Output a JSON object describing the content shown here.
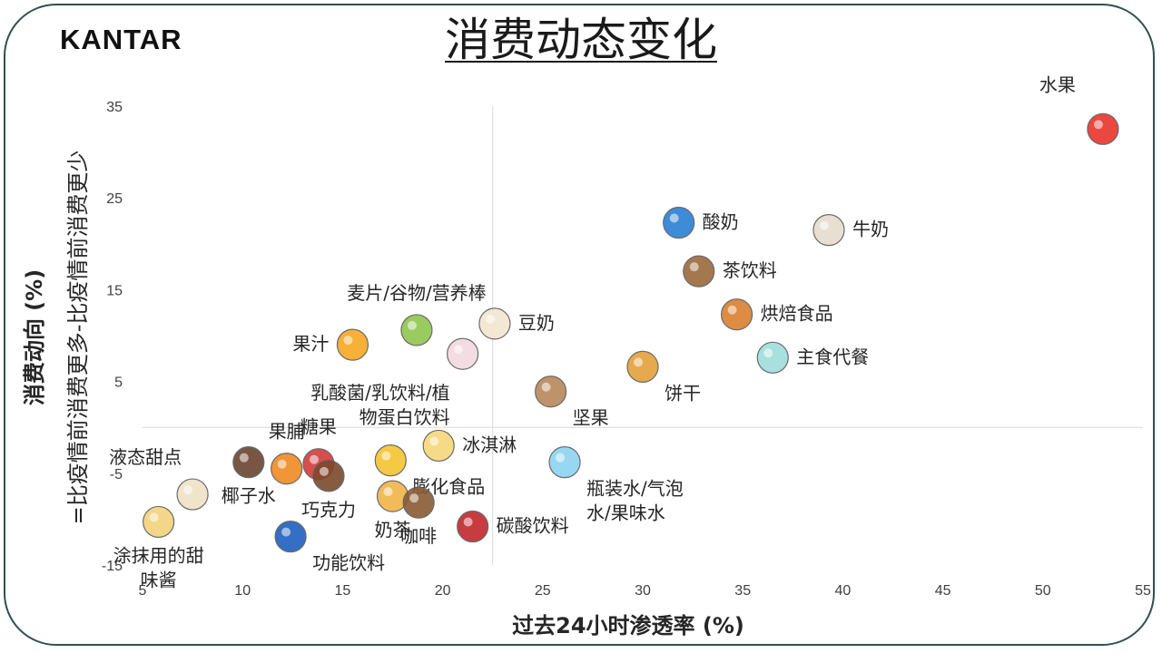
{
  "brand": "KANTAR",
  "chart_data": {
    "type": "scatter",
    "title": "消费动态变化",
    "xlabel": "过去24小时渗透率 (%)",
    "ylabel": "消费动向 (%)",
    "ylabel_sub": "=比疫情前消费更多-比疫情前消费更少",
    "xlim": [
      5,
      55
    ],
    "ylim": [
      -15,
      35
    ],
    "xticks": [
      5,
      10,
      15,
      20,
      25,
      30,
      35,
      40,
      45,
      50,
      55
    ],
    "yticks": [
      35,
      25,
      15,
      5,
      -5,
      -15
    ],
    "grid": false,
    "points": [
      {
        "name": "水果",
        "x": 53.0,
        "y": 32.5,
        "icon": "fruit-icon",
        "label_pos": "left-top",
        "label_lines": [
          "水果"
        ]
      },
      {
        "name": "酸奶",
        "x": 31.8,
        "y": 22.3,
        "icon": "yogurt-icon",
        "label_pos": "right",
        "label_lines": [
          "酸奶"
        ]
      },
      {
        "name": "牛奶",
        "x": 39.3,
        "y": 21.5,
        "icon": "milk-jug-icon",
        "label_pos": "right",
        "label_lines": [
          "牛奶"
        ]
      },
      {
        "name": "茶饮料",
        "x": 32.8,
        "y": 17.0,
        "icon": "tea-cup-icon",
        "label_pos": "right",
        "label_lines": [
          "茶饮料"
        ]
      },
      {
        "name": "烘焙食品",
        "x": 34.7,
        "y": 12.3,
        "icon": "baked-goods-icon",
        "label_pos": "right",
        "label_lines": [
          "烘焙食品"
        ]
      },
      {
        "name": "主食代餐",
        "x": 36.5,
        "y": 7.6,
        "icon": "noodle-bowl-icon",
        "label_pos": "right",
        "label_lines": [
          "主食代餐"
        ]
      },
      {
        "name": "饼干",
        "x": 30.0,
        "y": 6.6,
        "icon": "cookie-icon",
        "label_pos": "below-right",
        "label_lines": [
          "饼干"
        ]
      },
      {
        "name": "坚果",
        "x": 25.4,
        "y": 3.9,
        "icon": "nuts-icon",
        "label_pos": "below-right",
        "label_lines": [
          "坚果"
        ]
      },
      {
        "name": "豆奶",
        "x": 22.6,
        "y": 11.3,
        "icon": "soy-milk-bottle-icon",
        "label_pos": "right",
        "label_lines": [
          "豆奶"
        ]
      },
      {
        "name": "麦片/谷物/营养棒",
        "x": 18.7,
        "y": 10.6,
        "icon": "cereal-bowl-icon",
        "label_pos": "top",
        "label_lines": [
          "麦片/谷物/营养棒"
        ]
      },
      {
        "name": "乳酸菌/乳饮料/植物蛋白饮料",
        "x": 21.0,
        "y": 8.0,
        "icon": "drink-bottles-icon",
        "label_pos": "below-left",
        "label_lines": [
          "乳酸菌/乳饮料/植",
          "物蛋白饮料"
        ]
      },
      {
        "name": "果汁",
        "x": 15.5,
        "y": 9.0,
        "icon": "juice-glass-icon",
        "label_pos": "left",
        "label_lines": [
          "果汁"
        ]
      },
      {
        "name": "冰淇淋",
        "x": 19.8,
        "y": -2.0,
        "icon": "ice-cream-icon",
        "label_pos": "right",
        "label_lines": [
          "冰淇淋"
        ]
      },
      {
        "name": "瓶装水/气泡水/果味水",
        "x": 26.1,
        "y": -3.8,
        "icon": "water-bottle-icon",
        "label_pos": "below-right",
        "label_lines": [
          "瓶装水/气泡",
          "水/果味水"
        ]
      },
      {
        "name": "膨化食品",
        "x": 17.4,
        "y": -3.6,
        "icon": "fries-icon",
        "label_pos": "below-right",
        "label_lines": [
          "膨化食品"
        ]
      },
      {
        "name": "奶茶",
        "x": 17.5,
        "y": -7.5,
        "icon": "milk-tea-icon",
        "label_pos": "below",
        "label_lines": [
          "奶茶"
        ]
      },
      {
        "name": "咖啡",
        "x": 18.8,
        "y": -8.2,
        "icon": "coffee-cup-icon",
        "label_pos": "below",
        "label_lines": [
          "咖啡"
        ]
      },
      {
        "name": "碳酸饮料",
        "x": 21.5,
        "y": -10.8,
        "icon": "soda-bottle-icon",
        "label_pos": "right",
        "label_lines": [
          "碳酸饮料"
        ]
      },
      {
        "name": "果脯",
        "x": 12.2,
        "y": -4.5,
        "icon": "dried-fruit-icon",
        "label_pos": "top",
        "label_lines": [
          "果脯"
        ]
      },
      {
        "name": "糖果",
        "x": 13.8,
        "y": -4.0,
        "icon": "candy-icon",
        "label_pos": "top",
        "label_lines": [
          "糖果"
        ]
      },
      {
        "name": "巧克力",
        "x": 14.3,
        "y": -5.3,
        "icon": "chocolate-icon",
        "label_pos": "below",
        "label_lines": [
          "巧克力"
        ]
      },
      {
        "name": "椰子水",
        "x": 10.3,
        "y": -3.8,
        "icon": "coconut-drink-icon",
        "label_pos": "below",
        "label_lines": [
          "椰子水"
        ]
      },
      {
        "name": "液态甜点",
        "x": 7.5,
        "y": -7.3,
        "icon": "pudding-bowl-icon",
        "label_pos": "top-left",
        "label_lines": [
          "液态甜点"
        ]
      },
      {
        "name": "涂抹用的甜味酱",
        "x": 5.8,
        "y": -10.3,
        "icon": "toast-spread-icon",
        "label_pos": "below",
        "label_lines": [
          "涂抹用的甜",
          "味酱"
        ]
      },
      {
        "name": "功能饮料",
        "x": 12.4,
        "y": -11.9,
        "icon": "sports-bottle-icon",
        "label_pos": "below-right",
        "label_lines": [
          "功能饮料"
        ]
      }
    ]
  }
}
